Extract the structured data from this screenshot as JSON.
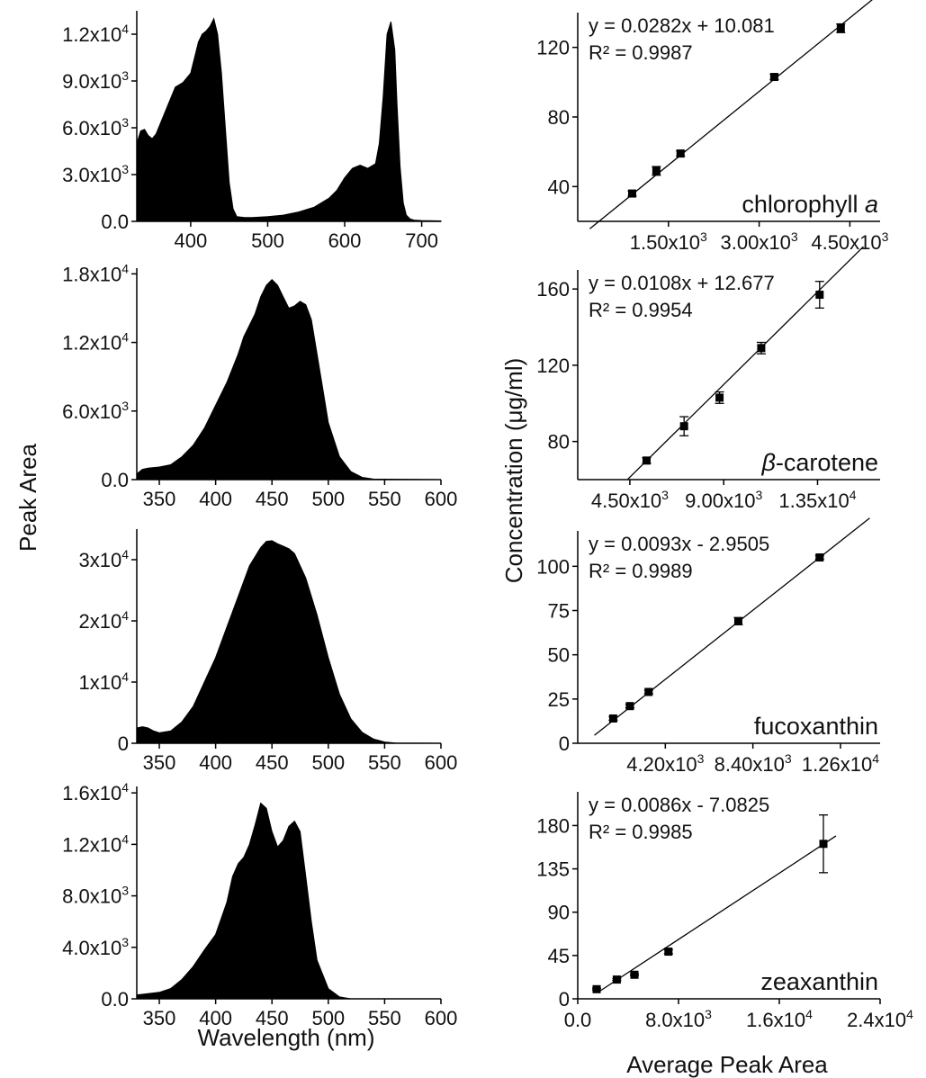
{
  "figure": {
    "left_ylabel": "Peak Area",
    "left_xlabel": "Wavelength (nm)",
    "right_ylabel": "Concentration  (μg/ml)",
    "right_xlabel": "Average Peak Area"
  },
  "chart_data": [
    {
      "type": "area",
      "panel": "spectrum-1",
      "xlim": [
        330,
        725
      ],
      "ylim": [
        0,
        13500
      ],
      "xticks": [
        {
          "v": 400,
          "label": "400"
        },
        {
          "v": 500,
          "label": "500"
        },
        {
          "v": 600,
          "label": "600"
        },
        {
          "v": 700,
          "label": "700"
        }
      ],
      "yticks": [
        {
          "v": 0,
          "mant": "0.0",
          "exp": ""
        },
        {
          "v": 3000,
          "mant": "3.0x10",
          "exp": "3"
        },
        {
          "v": 6000,
          "mant": "6.0x10",
          "exp": "3"
        },
        {
          "v": 9000,
          "mant": "9.0x10",
          "exp": "3"
        },
        {
          "v": 12000,
          "mant": "1.2x10",
          "exp": "4"
        }
      ],
      "x": [
        330,
        335,
        340,
        345,
        350,
        355,
        360,
        370,
        380,
        390,
        400,
        405,
        410,
        415,
        420,
        425,
        430,
        435,
        440,
        445,
        450,
        455,
        460,
        470,
        480,
        500,
        520,
        540,
        560,
        580,
        590,
        600,
        610,
        620,
        630,
        640,
        645,
        650,
        655,
        660,
        665,
        668,
        672,
        676,
        680,
        685,
        690,
        700,
        725
      ],
      "y": [
        5000,
        5800,
        5900,
        5500,
        5300,
        5600,
        6200,
        7400,
        8600,
        8900,
        9500,
        10500,
        11500,
        12000,
        12200,
        12500,
        13000,
        12000,
        9500,
        6000,
        2500,
        800,
        300,
        250,
        250,
        300,
        400,
        600,
        900,
        1500,
        2000,
        2800,
        3400,
        3600,
        3400,
        3700,
        5000,
        8000,
        12000,
        12800,
        11000,
        7500,
        3500,
        1200,
        400,
        150,
        80,
        50,
        30
      ]
    },
    {
      "type": "area",
      "panel": "spectrum-2",
      "xlim": [
        330,
        600
      ],
      "ylim": [
        0,
        18500
      ],
      "xticks": [
        {
          "v": 350,
          "label": "350"
        },
        {
          "v": 400,
          "label": "400"
        },
        {
          "v": 450,
          "label": "450"
        },
        {
          "v": 500,
          "label": "500"
        },
        {
          "v": 550,
          "label": "550"
        },
        {
          "v": 600,
          "label": "600"
        }
      ],
      "yticks": [
        {
          "v": 0,
          "mant": "0.0",
          "exp": ""
        },
        {
          "v": 6000,
          "mant": "6.0x10",
          "exp": "3"
        },
        {
          "v": 12000,
          "mant": "1.2x10",
          "exp": "4"
        },
        {
          "v": 18000,
          "mant": "1.8x10",
          "exp": "4"
        }
      ],
      "x": [
        330,
        335,
        340,
        350,
        360,
        370,
        380,
        390,
        400,
        410,
        420,
        425,
        430,
        435,
        440,
        445,
        450,
        455,
        460,
        465,
        470,
        475,
        480,
        485,
        490,
        495,
        500,
        510,
        520,
        530,
        540,
        600
      ],
      "y": [
        500,
        900,
        1000,
        1100,
        1300,
        2000,
        3000,
        4500,
        6500,
        8500,
        11000,
        12500,
        13500,
        14500,
        16000,
        17000,
        17500,
        17000,
        16000,
        15000,
        15200,
        15600,
        15300,
        14000,
        11000,
        8000,
        5000,
        2000,
        700,
        200,
        50,
        0
      ]
    },
    {
      "type": "area",
      "panel": "spectrum-3",
      "xlim": [
        330,
        600
      ],
      "ylim": [
        0,
        35000
      ],
      "xticks": [
        {
          "v": 350,
          "label": "350"
        },
        {
          "v": 400,
          "label": "400"
        },
        {
          "v": 450,
          "label": "450"
        },
        {
          "v": 500,
          "label": "500"
        },
        {
          "v": 550,
          "label": "550"
        },
        {
          "v": 600,
          "label": "600"
        }
      ],
      "yticks": [
        {
          "v": 0,
          "mant": "0",
          "exp": ""
        },
        {
          "v": 10000,
          "mant": "1x10",
          "exp": "4"
        },
        {
          "v": 20000,
          "mant": "2x10",
          "exp": "4"
        },
        {
          "v": 30000,
          "mant": "3x10",
          "exp": "4"
        }
      ],
      "x": [
        330,
        335,
        340,
        345,
        350,
        360,
        370,
        380,
        390,
        400,
        410,
        420,
        430,
        440,
        445,
        450,
        455,
        460,
        465,
        470,
        480,
        490,
        500,
        510,
        520,
        530,
        540,
        550,
        560,
        600
      ],
      "y": [
        2500,
        2700,
        2500,
        2000,
        1700,
        2000,
        3500,
        6000,
        10000,
        14000,
        19000,
        24000,
        29000,
        32000,
        33000,
        33100,
        32600,
        32200,
        31800,
        31000,
        27000,
        21000,
        14000,
        8000,
        4000,
        1800,
        700,
        200,
        50,
        0
      ]
    },
    {
      "type": "area",
      "panel": "spectrum-4",
      "xlim": [
        330,
        600
      ],
      "ylim": [
        0,
        16500
      ],
      "xticks": [
        {
          "v": 350,
          "label": "350"
        },
        {
          "v": 400,
          "label": "400"
        },
        {
          "v": 450,
          "label": "450"
        },
        {
          "v": 500,
          "label": "500"
        },
        {
          "v": 550,
          "label": "550"
        },
        {
          "v": 600,
          "label": "600"
        }
      ],
      "yticks": [
        {
          "v": 0,
          "mant": "0.0",
          "exp": ""
        },
        {
          "v": 4000,
          "mant": "4.0x10",
          "exp": "3"
        },
        {
          "v": 8000,
          "mant": "8.0x10",
          "exp": "3"
        },
        {
          "v": 12000,
          "mant": "1.2x10",
          "exp": "4"
        },
        {
          "v": 16000,
          "mant": "1.6x10",
          "exp": "4"
        }
      ],
      "x": [
        330,
        340,
        350,
        360,
        370,
        380,
        390,
        400,
        410,
        415,
        420,
        425,
        430,
        435,
        440,
        445,
        450,
        455,
        460,
        465,
        470,
        475,
        480,
        485,
        490,
        500,
        510,
        520,
        600
      ],
      "y": [
        300,
        400,
        500,
        800,
        1500,
        2500,
        3800,
        5000,
        7500,
        9500,
        10500,
        11000,
        12000,
        13500,
        15200,
        14800,
        13000,
        11800,
        12300,
        13400,
        13800,
        13000,
        9500,
        6000,
        3000,
        800,
        150,
        0,
        0
      ]
    },
    {
      "type": "scatter",
      "panel": "calib-1",
      "label": "chlorophyll",
      "label_italic": "a",
      "equation": "y = 0.0282x + 10.081",
      "r2": "R² = 0.9987",
      "slope": 0.0282,
      "intercept": 10.081,
      "xlim": [
        0,
        5000
      ],
      "ylim": [
        20,
        140
      ],
      "fit_x": [
        200,
        4900
      ],
      "xticks": [
        {
          "v": 1500,
          "label": "1.50x10",
          "exp": "3"
        },
        {
          "v": 3000,
          "label": "3.00x10",
          "exp": "3"
        },
        {
          "v": 4500,
          "label": "4.50x10",
          "exp": "3"
        }
      ],
      "yticks": [
        {
          "v": 40,
          "label": "40"
        },
        {
          "v": 80,
          "label": "80"
        },
        {
          "v": 120,
          "label": "120"
        }
      ],
      "points": [
        {
          "x": 900,
          "y": 36,
          "err": 1.5
        },
        {
          "x": 1300,
          "y": 49,
          "err": 2.5
        },
        {
          "x": 1700,
          "y": 59,
          "err": 1.5
        },
        {
          "x": 3250,
          "y": 103,
          "err": 1.5
        },
        {
          "x": 4350,
          "y": 131,
          "err": 2.5
        }
      ]
    },
    {
      "type": "scatter",
      "panel": "calib-2",
      "label": "-carotene",
      "label_italic_prefix": "β",
      "equation": "y = 0.0108x + 12.677",
      "r2": "R² = 0.9954",
      "slope": 0.0108,
      "intercept": 12.677,
      "xlim": [
        2000,
        16500
      ],
      "ylim": [
        60,
        170
      ],
      "fit_x": [
        4400,
        15700
      ],
      "xticks": [
        {
          "v": 4500,
          "label": "4.50x10",
          "exp": "3"
        },
        {
          "v": 9000,
          "label": "9.00x10",
          "exp": "3"
        },
        {
          "v": 13500,
          "label": "1.35x10",
          "exp": "4"
        }
      ],
      "yticks": [
        {
          "v": 80,
          "label": "80"
        },
        {
          "v": 120,
          "label": "120"
        },
        {
          "v": 160,
          "label": "160"
        }
      ],
      "points": [
        {
          "x": 5300,
          "y": 70,
          "err": 1.5
        },
        {
          "x": 7100,
          "y": 88,
          "err": 5
        },
        {
          "x": 8800,
          "y": 103,
          "err": 3
        },
        {
          "x": 10800,
          "y": 129,
          "err": 3
        },
        {
          "x": 13600,
          "y": 157,
          "err": 7
        }
      ]
    },
    {
      "type": "scatter",
      "panel": "calib-3",
      "label": "fucoxanthin",
      "equation": "y = 0.0093x - 2.9505",
      "r2": "R² = 0.9989",
      "slope": 0.0093,
      "intercept": -2.9505,
      "xlim": [
        0,
        14500
      ],
      "ylim": [
        0,
        120
      ],
      "fit_x": [
        800,
        14000
      ],
      "xticks": [
        {
          "v": 4200,
          "label": "4.20x10",
          "exp": "3"
        },
        {
          "v": 8400,
          "label": "8.40x10",
          "exp": "3"
        },
        {
          "v": 12600,
          "label": "1.26x10",
          "exp": "4"
        }
      ],
      "yticks": [
        {
          "v": 0,
          "label": "0"
        },
        {
          "v": 25,
          "label": "25"
        },
        {
          "v": 50,
          "label": "50"
        },
        {
          "v": 75,
          "label": "75"
        },
        {
          "v": 100,
          "label": "100"
        }
      ],
      "points": [
        {
          "x": 1700,
          "y": 14,
          "err": 1
        },
        {
          "x": 2500,
          "y": 21,
          "err": 1
        },
        {
          "x": 3400,
          "y": 29,
          "err": 1
        },
        {
          "x": 7700,
          "y": 69,
          "err": 2
        },
        {
          "x": 11600,
          "y": 105,
          "err": 1
        }
      ]
    },
    {
      "type": "scatter",
      "panel": "calib-4",
      "label": "zeaxanthin",
      "equation": "y = 0.0086x - 7.0825",
      "r2": "R² = 0.9985",
      "slope": 0.0086,
      "intercept": -7.0825,
      "xlim": [
        0,
        24000
      ],
      "ylim": [
        0,
        215
      ],
      "fit_x": [
        1800,
        20500
      ],
      "xticks": [
        {
          "v": 0,
          "label": "0.0",
          "exp": ""
        },
        {
          "v": 8000,
          "label": "8.0x10",
          "exp": "3"
        },
        {
          "v": 16000,
          "label": "1.6x10",
          "exp": "4"
        },
        {
          "v": 24000,
          "label": "2.4x10",
          "exp": "4"
        }
      ],
      "yticks": [
        {
          "v": 0,
          "label": "0"
        },
        {
          "v": 45,
          "label": "45"
        },
        {
          "v": 90,
          "label": "90"
        },
        {
          "v": 135,
          "label": "135"
        },
        {
          "v": 180,
          "label": "180"
        }
      ],
      "points": [
        {
          "x": 1500,
          "y": 10,
          "err": 1
        },
        {
          "x": 3100,
          "y": 20,
          "err": 1
        },
        {
          "x": 4500,
          "y": 25,
          "err": 1
        },
        {
          "x": 7200,
          "y": 49,
          "err": 2
        },
        {
          "x": 19500,
          "y": 161,
          "err": 30
        }
      ]
    }
  ]
}
